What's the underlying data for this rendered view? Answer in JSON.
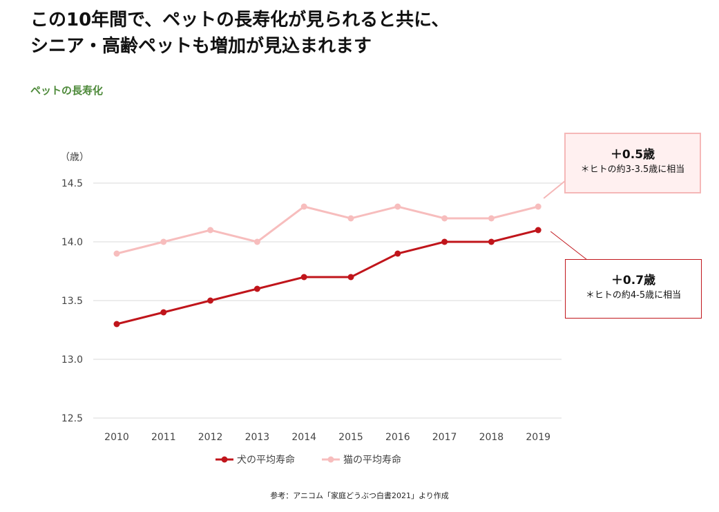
{
  "header": {
    "title_line1": "この10年間で、ペットの長寿化が見られると共に、",
    "title_line2": "シニア・高齢ペットも増加が見込まれます",
    "subtitle": "ペットの長寿化"
  },
  "chart_data": {
    "type": "line",
    "ylabel": "（歳）",
    "categories": [
      "2010",
      "2011",
      "2012",
      "2013",
      "2014",
      "2015",
      "2016",
      "2017",
      "2018",
      "2019"
    ],
    "ylim": [
      12.5,
      14.5
    ],
    "yticks": [
      12.5,
      13.0,
      13.5,
      14.0,
      14.5
    ],
    "ytick_labels": [
      "12.5",
      "13.0",
      "13.5",
      "14.0",
      "14.5"
    ],
    "grid": "horizontal",
    "legend_position": "bottom",
    "series": [
      {
        "name": "犬の平均寿命",
        "color": "#c0151b",
        "values": [
          13.3,
          13.4,
          13.5,
          13.6,
          13.7,
          13.7,
          13.9,
          14.0,
          14.0,
          14.1
        ]
      },
      {
        "name": "猫の平均寿命",
        "color": "#f7bdbd",
        "values": [
          13.9,
          14.0,
          14.1,
          14.0,
          14.3,
          14.2,
          14.3,
          14.2,
          14.2,
          14.3
        ]
      }
    ]
  },
  "callouts": {
    "cat": {
      "main": "＋0.5歳",
      "note": "＊ヒトの約3-3.5歳に相当",
      "border_color": "#f5b7b7",
      "fill_color": "#fff0f0"
    },
    "dog": {
      "main": "＋0.7歳",
      "note": "＊ヒトの約4-5歳に相当",
      "border_color": "#c0151b"
    }
  },
  "footer": {
    "source": "参考：アニコム「家庭どうぶつ白書2021」より作成"
  }
}
